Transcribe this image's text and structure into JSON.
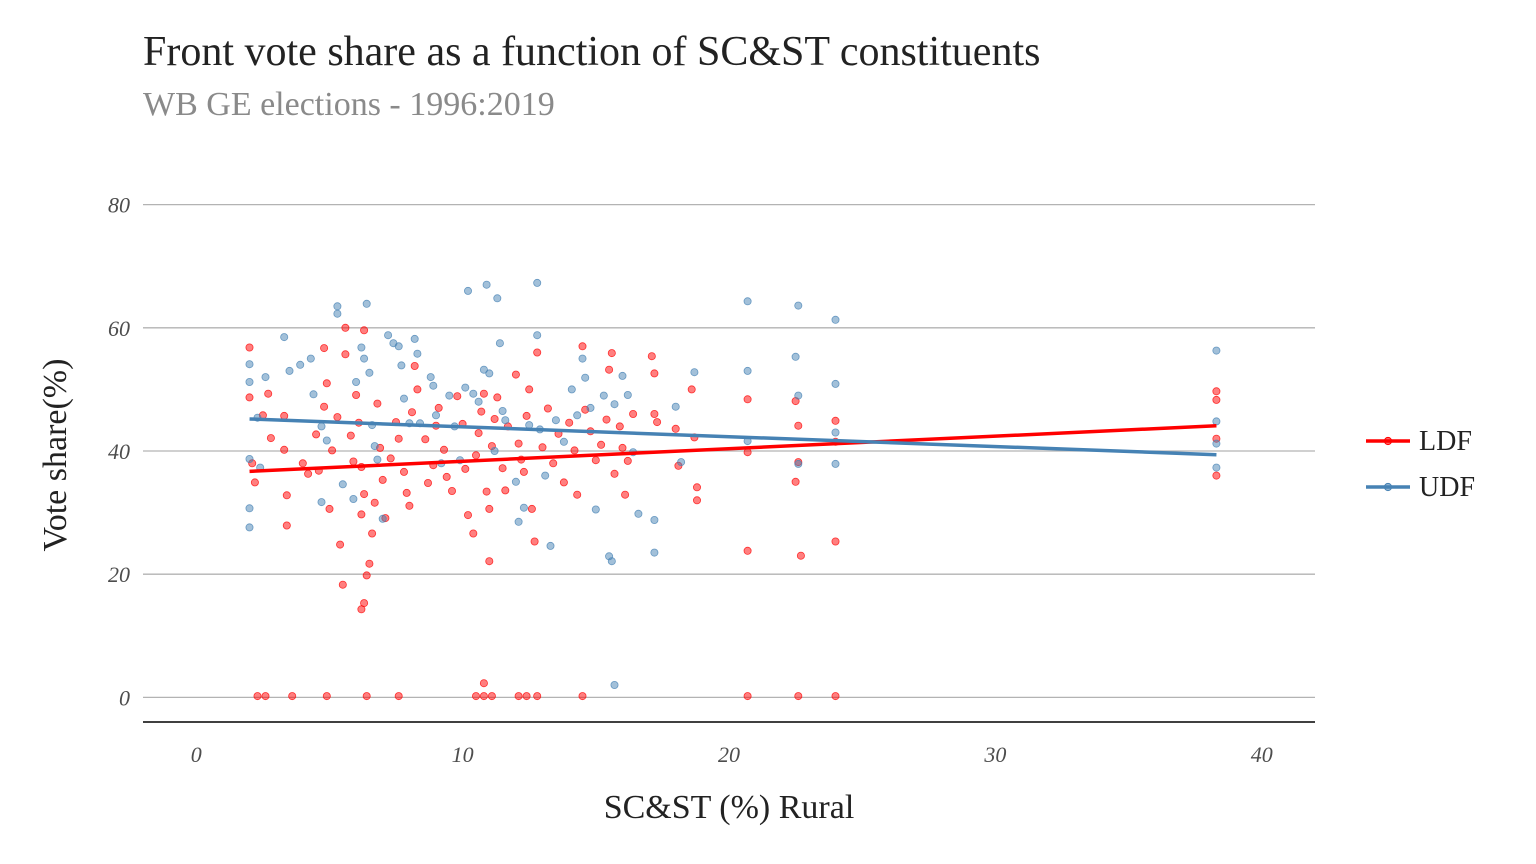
{
  "chart_data": {
    "type": "scatter",
    "title": "Front vote share as a function of SC&ST constituents",
    "subtitle": "WB GE elections - 1996:2019",
    "xlabel": "SC&ST (%) Rural",
    "ylabel": "Vote share(%)",
    "xlim": [
      -2,
      42
    ],
    "ylim": [
      -4,
      84
    ],
    "x_ticks": [
      0,
      10,
      20,
      30,
      40
    ],
    "y_ticks": [
      0,
      20,
      40,
      60,
      80
    ],
    "grid": "horizontal major gridlines",
    "legend_position": "right",
    "series": [
      {
        "name": "LDF",
        "color": "#ff0000",
        "trend": {
          "x": [
            2,
            38.3
          ],
          "y": [
            36.7,
            44.1
          ]
        },
        "points": [
          [
            2.0,
            56.8
          ],
          [
            2.0,
            48.7
          ],
          [
            2.1,
            38.0
          ],
          [
            2.2,
            34.9
          ],
          [
            2.3,
            0.2
          ],
          [
            2.5,
            45.8
          ],
          [
            2.6,
            0.2
          ],
          [
            2.7,
            49.3
          ],
          [
            2.8,
            42.1
          ],
          [
            3.3,
            40.2
          ],
          [
            3.3,
            45.7
          ],
          [
            3.4,
            32.8
          ],
          [
            3.4,
            27.9
          ],
          [
            3.6,
            0.2
          ],
          [
            4.0,
            38.0
          ],
          [
            4.2,
            36.3
          ],
          [
            4.5,
            42.7
          ],
          [
            4.6,
            36.8
          ],
          [
            4.8,
            56.7
          ],
          [
            4.9,
            51.0
          ],
          [
            4.8,
            47.2
          ],
          [
            5.1,
            40.1
          ],
          [
            5.0,
            30.6
          ],
          [
            4.9,
            0.2
          ],
          [
            5.3,
            45.5
          ],
          [
            5.4,
            24.8
          ],
          [
            5.5,
            18.3
          ],
          [
            5.6,
            60.0
          ],
          [
            5.6,
            55.7
          ],
          [
            5.8,
            42.5
          ],
          [
            5.9,
            38.3
          ],
          [
            6.0,
            49.1
          ],
          [
            6.1,
            44.6
          ],
          [
            6.2,
            37.4
          ],
          [
            6.3,
            33.0
          ],
          [
            6.2,
            29.7
          ],
          [
            6.2,
            14.3
          ],
          [
            6.3,
            15.3
          ],
          [
            6.4,
            19.8
          ],
          [
            6.5,
            21.7
          ],
          [
            6.6,
            26.6
          ],
          [
            6.7,
            31.6
          ],
          [
            6.3,
            59.6
          ],
          [
            6.4,
            0.2
          ],
          [
            6.8,
            47.7
          ],
          [
            6.9,
            40.5
          ],
          [
            7.0,
            35.3
          ],
          [
            7.1,
            29.1
          ],
          [
            7.3,
            38.8
          ],
          [
            7.5,
            44.7
          ],
          [
            7.6,
            42.0
          ],
          [
            7.8,
            36.6
          ],
          [
            7.9,
            33.2
          ],
          [
            8.0,
            31.1
          ],
          [
            8.1,
            46.3
          ],
          [
            8.2,
            53.8
          ],
          [
            8.3,
            50.0
          ],
          [
            7.6,
            0.2
          ],
          [
            8.6,
            41.9
          ],
          [
            8.7,
            34.8
          ],
          [
            8.9,
            37.7
          ],
          [
            9.0,
            44.1
          ],
          [
            9.1,
            47.0
          ],
          [
            9.3,
            40.2
          ],
          [
            9.4,
            35.8
          ],
          [
            9.6,
            33.5
          ],
          [
            9.8,
            48.9
          ],
          [
            10.0,
            44.4
          ],
          [
            10.1,
            37.1
          ],
          [
            10.2,
            29.6
          ],
          [
            10.4,
            26.6
          ],
          [
            10.5,
            39.3
          ],
          [
            10.6,
            42.9
          ],
          [
            10.7,
            46.4
          ],
          [
            10.8,
            49.3
          ],
          [
            10.9,
            33.4
          ],
          [
            11.0,
            30.6
          ],
          [
            11.1,
            40.8
          ],
          [
            11.2,
            45.2
          ],
          [
            11.3,
            48.7
          ],
          [
            11.0,
            22.1
          ],
          [
            10.8,
            2.3
          ],
          [
            10.8,
            0.2
          ],
          [
            11.1,
            0.2
          ],
          [
            10.5,
            0.2
          ],
          [
            11.5,
            37.2
          ],
          [
            11.6,
            33.6
          ],
          [
            11.7,
            44.0
          ],
          [
            12.0,
            52.4
          ],
          [
            12.1,
            41.2
          ],
          [
            12.2,
            38.6
          ],
          [
            12.3,
            36.6
          ],
          [
            12.4,
            45.7
          ],
          [
            12.5,
            50.0
          ],
          [
            12.6,
            30.6
          ],
          [
            12.8,
            56.0
          ],
          [
            12.7,
            25.3
          ],
          [
            12.8,
            0.2
          ],
          [
            12.1,
            0.2
          ],
          [
            12.4,
            0.2
          ],
          [
            13.0,
            40.6
          ],
          [
            13.2,
            46.9
          ],
          [
            13.4,
            38.0
          ],
          [
            13.6,
            42.8
          ],
          [
            13.8,
            34.9
          ],
          [
            14.0,
            44.6
          ],
          [
            14.2,
            40.1
          ],
          [
            14.3,
            32.9
          ],
          [
            14.5,
            57.0
          ],
          [
            14.6,
            46.7
          ],
          [
            14.8,
            43.2
          ],
          [
            14.5,
            0.2
          ],
          [
            15.0,
            38.5
          ],
          [
            15.2,
            41.0
          ],
          [
            15.4,
            45.1
          ],
          [
            15.5,
            53.2
          ],
          [
            15.6,
            55.9
          ],
          [
            15.7,
            36.3
          ],
          [
            15.9,
            44.0
          ],
          [
            16.0,
            40.5
          ],
          [
            16.1,
            32.9
          ],
          [
            16.2,
            38.4
          ],
          [
            16.4,
            46.0
          ],
          [
            17.1,
            55.4
          ],
          [
            17.2,
            52.6
          ],
          [
            17.3,
            44.7
          ],
          [
            17.2,
            46.0
          ],
          [
            18.0,
            43.6
          ],
          [
            18.1,
            37.6
          ],
          [
            18.6,
            50.0
          ],
          [
            18.7,
            42.2
          ],
          [
            18.8,
            34.1
          ],
          [
            18.8,
            32.0
          ],
          [
            20.7,
            48.4
          ],
          [
            20.7,
            39.8
          ],
          [
            20.7,
            23.8
          ],
          [
            20.7,
            0.2
          ],
          [
            22.5,
            48.1
          ],
          [
            22.6,
            44.1
          ],
          [
            22.6,
            38.2
          ],
          [
            22.5,
            35.0
          ],
          [
            22.7,
            23.0
          ],
          [
            22.6,
            0.2
          ],
          [
            24.0,
            44.9
          ],
          [
            24.0,
            41.5
          ],
          [
            24.0,
            25.3
          ],
          [
            24.0,
            0.2
          ],
          [
            38.3,
            49.7
          ],
          [
            38.3,
            48.3
          ],
          [
            38.3,
            36.0
          ],
          [
            38.3,
            42.0
          ]
        ]
      },
      {
        "name": "UDF",
        "color": "#4682b4",
        "trend": {
          "x": [
            2,
            38.3
          ],
          "y": [
            45.2,
            39.4
          ]
        },
        "points": [
          [
            2.0,
            54.1
          ],
          [
            2.0,
            51.2
          ],
          [
            2.0,
            38.7
          ],
          [
            2.0,
            30.7
          ],
          [
            2.0,
            27.6
          ],
          [
            2.3,
            45.4
          ],
          [
            2.4,
            37.3
          ],
          [
            2.6,
            52.0
          ],
          [
            3.3,
            58.5
          ],
          [
            3.5,
            53.0
          ],
          [
            3.9,
            54.0
          ],
          [
            4.3,
            55.0
          ],
          [
            4.4,
            49.2
          ],
          [
            4.7,
            44.0
          ],
          [
            4.9,
            41.7
          ],
          [
            4.7,
            31.7
          ],
          [
            5.3,
            63.5
          ],
          [
            5.3,
            62.3
          ],
          [
            5.5,
            34.6
          ],
          [
            5.9,
            32.2
          ],
          [
            6.0,
            51.2
          ],
          [
            6.2,
            56.8
          ],
          [
            6.3,
            55.0
          ],
          [
            6.4,
            63.9
          ],
          [
            6.5,
            52.7
          ],
          [
            6.6,
            44.2
          ],
          [
            6.7,
            40.8
          ],
          [
            6.8,
            38.6
          ],
          [
            7.0,
            29.0
          ],
          [
            7.2,
            58.8
          ],
          [
            7.4,
            57.5
          ],
          [
            7.6,
            57.0
          ],
          [
            7.7,
            53.9
          ],
          [
            7.8,
            48.5
          ],
          [
            8.0,
            44.5
          ],
          [
            8.2,
            58.2
          ],
          [
            8.3,
            55.8
          ],
          [
            8.4,
            44.5
          ],
          [
            8.8,
            52.0
          ],
          [
            8.9,
            50.6
          ],
          [
            9.0,
            45.8
          ],
          [
            9.2,
            38.0
          ],
          [
            9.5,
            49.0
          ],
          [
            9.7,
            44.0
          ],
          [
            9.9,
            38.5
          ],
          [
            10.1,
            50.3
          ],
          [
            10.2,
            66.0
          ],
          [
            10.4,
            49.3
          ],
          [
            10.6,
            48.0
          ],
          [
            10.8,
            53.2
          ],
          [
            10.9,
            67.0
          ],
          [
            11.0,
            52.6
          ],
          [
            11.2,
            40.0
          ],
          [
            11.3,
            64.8
          ],
          [
            11.4,
            57.5
          ],
          [
            11.5,
            46.5
          ],
          [
            11.6,
            45.0
          ],
          [
            12.0,
            35.0
          ],
          [
            12.1,
            28.5
          ],
          [
            12.3,
            30.8
          ],
          [
            12.5,
            44.2
          ],
          [
            12.8,
            67.3
          ],
          [
            12.8,
            58.8
          ],
          [
            12.9,
            43.5
          ],
          [
            13.1,
            36.0
          ],
          [
            13.3,
            24.6
          ],
          [
            13.5,
            45.0
          ],
          [
            13.8,
            41.5
          ],
          [
            14.1,
            50.0
          ],
          [
            14.3,
            45.8
          ],
          [
            14.5,
            55.0
          ],
          [
            14.6,
            51.9
          ],
          [
            14.8,
            47.0
          ],
          [
            15.0,
            30.5
          ],
          [
            15.3,
            49.0
          ],
          [
            15.5,
            22.9
          ],
          [
            15.6,
            22.1
          ],
          [
            15.7,
            47.6
          ],
          [
            15.7,
            2.0
          ],
          [
            16.0,
            52.2
          ],
          [
            16.2,
            49.1
          ],
          [
            16.4,
            39.8
          ],
          [
            16.6,
            29.8
          ],
          [
            17.2,
            28.8
          ],
          [
            17.2,
            23.5
          ],
          [
            18.0,
            47.2
          ],
          [
            18.2,
            38.2
          ],
          [
            18.7,
            52.8
          ],
          [
            20.7,
            64.3
          ],
          [
            20.7,
            53.0
          ],
          [
            20.7,
            41.6
          ],
          [
            22.6,
            63.6
          ],
          [
            22.5,
            55.3
          ],
          [
            22.6,
            49.0
          ],
          [
            22.6,
            37.9
          ],
          [
            24.0,
            61.3
          ],
          [
            24.0,
            50.9
          ],
          [
            24.0,
            43.0
          ],
          [
            24.0,
            37.9
          ],
          [
            38.3,
            56.3
          ],
          [
            38.3,
            44.8
          ],
          [
            38.3,
            37.3
          ],
          [
            38.3,
            41.2
          ]
        ]
      }
    ]
  }
}
